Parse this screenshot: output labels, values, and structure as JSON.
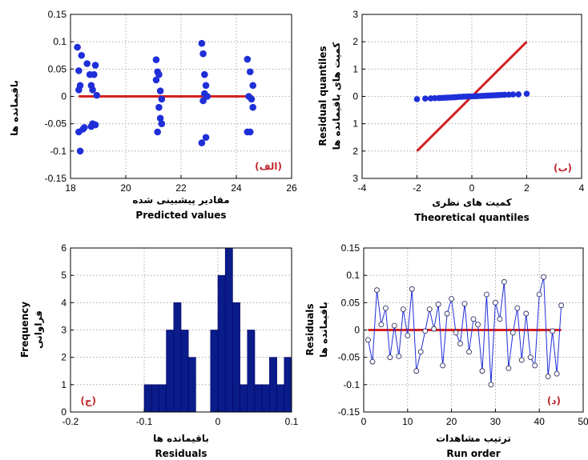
{
  "chart_data": [
    {
      "type": "scatter",
      "tag": "(الف)",
      "xlabel_fa": "مقادیر پیشبینی شده",
      "xlabel_en": "Predicted values",
      "ylabel_fa": "باقیمانده ها",
      "xlim": [
        18,
        26
      ],
      "ylim": [
        -0.15,
        0.15
      ],
      "xticks": [
        "18",
        "20",
        "22",
        "24",
        "26"
      ],
      "yticks": [
        "0.15",
        "0.1",
        "0.05",
        "0",
        "-0.05",
        "-0.1",
        "-0.15"
      ],
      "xtick_values": [
        18,
        20,
        22,
        24,
        26
      ],
      "ytick_values": [
        0.15,
        0.1,
        0.05,
        0,
        -0.05,
        -0.1,
        -0.15
      ],
      "grid": true,
      "point_color": "#1f2fd8",
      "line_color": "#d42020",
      "reference_line": {
        "x": [
          18.3,
          24.6
        ],
        "y": [
          0,
          0
        ]
      },
      "x": [
        18.25,
        18.3,
        18.35,
        18.3,
        18.4,
        18.3,
        18.45,
        18.35,
        18.5,
        18.6,
        18.7,
        18.75,
        18.8,
        18.75,
        18.8,
        18.9,
        18.85,
        18.95,
        18.9,
        21.1,
        21.15,
        21.1,
        21.2,
        21.25,
        21.3,
        21.2,
        21.15,
        21.3,
        21.25,
        22.75,
        22.8,
        22.85,
        22.9,
        22.8,
        22.85,
        22.95,
        22.75,
        22.9,
        24.4,
        24.5,
        24.6,
        24.45,
        24.55,
        24.6,
        24.4,
        24.5
      ],
      "y": [
        0.09,
        0.047,
        0.02,
        0.012,
        0.075,
        -0.065,
        -0.06,
        -0.1,
        -0.057,
        0.06,
        0.04,
        0.02,
        0.012,
        -0.055,
        -0.05,
        0.057,
        0.04,
        0.002,
        -0.052,
        0.067,
        0.045,
        0.03,
        0.04,
        0.01,
        -0.005,
        -0.02,
        -0.065,
        -0.05,
        -0.04,
        0.097,
        0.078,
        0.04,
        0.02,
        -0.008,
        0.005,
        0.0,
        -0.085,
        -0.075,
        0.068,
        0.045,
        0.02,
        0.0,
        -0.005,
        -0.02,
        -0.065,
        -0.065
      ]
    },
    {
      "type": "line",
      "tag": "(ب)",
      "xlabel_fa": "کمیت های نظری",
      "xlabel_en": "Theoretical quantiles",
      "ylabel_en": "Residual quantiles",
      "ylabel_fa": "کمیت های باقیمانده ها",
      "xlim": [
        -4,
        4
      ],
      "ylim": [
        -3,
        3
      ],
      "xticks": [
        "-4",
        "-2",
        "0",
        "2",
        "4"
      ],
      "yticks": [
        "3",
        "2",
        "1",
        "0",
        "1",
        "2",
        "3"
      ],
      "xtick_values": [
        -4,
        -2,
        0,
        2,
        4
      ],
      "ytick_values": [
        3,
        2,
        1,
        0,
        -1,
        -2,
        -3
      ],
      "grid": true,
      "reference_line": {
        "x": [
          -2,
          2
        ],
        "y": [
          -2,
          2
        ]
      },
      "points_x": [
        -2.0,
        -1.7,
        -1.5,
        -1.35,
        -1.2,
        -1.1,
        -1.0,
        -0.9,
        -0.8,
        -0.7,
        -0.6,
        -0.5,
        -0.4,
        -0.3,
        -0.2,
        -0.1,
        0.0,
        0.1,
        0.2,
        0.3,
        0.4,
        0.5,
        0.6,
        0.7,
        0.8,
        0.9,
        1.0,
        1.1,
        1.2,
        1.35,
        1.5,
        1.7,
        2.0
      ],
      "points_y": [
        -0.1,
        -0.08,
        -0.07,
        -0.065,
        -0.06,
        -0.055,
        -0.05,
        -0.045,
        -0.04,
        -0.035,
        -0.03,
        -0.02,
        -0.015,
        -0.01,
        -0.005,
        0.0,
        0.0,
        0.005,
        0.01,
        0.015,
        0.02,
        0.025,
        0.03,
        0.035,
        0.04,
        0.045,
        0.05,
        0.055,
        0.06,
        0.065,
        0.07,
        0.075,
        0.097
      ]
    },
    {
      "type": "bar",
      "tag": "(ج)",
      "xlabel_fa": "باقیمانده ها",
      "xlabel_en": "Residuals",
      "ylabel_en": "Frequency",
      "ylabel_fa": "فراوانی",
      "xlim": [
        -0.2,
        0.1
      ],
      "ylim": [
        0,
        6
      ],
      "xticks": [
        "-0.2",
        "-0.1",
        "0",
        "0.1"
      ],
      "yticks": [
        "6",
        "5",
        "4",
        "3",
        "2",
        "1",
        "0"
      ],
      "xtick_values": [
        -0.2,
        -0.1,
        0,
        0.1
      ],
      "ytick_values": [
        6,
        5,
        4,
        3,
        2,
        1,
        0
      ],
      "grid": true,
      "bar_color": "#0a1c8a",
      "bin_width": 0.01,
      "bin_starts": [
        -0.1,
        -0.09,
        -0.08,
        -0.07,
        -0.06,
        -0.05,
        -0.04,
        -0.03,
        -0.02,
        -0.01,
        0.0,
        0.01,
        0.02,
        0.03,
        0.04,
        0.05,
        0.06,
        0.07,
        0.08,
        0.09
      ],
      "values": [
        1,
        1,
        1,
        3,
        4,
        3,
        2,
        0,
        0,
        3,
        5,
        6,
        4,
        1,
        3,
        1,
        1,
        2,
        1,
        2
      ]
    },
    {
      "type": "line",
      "tag": "(د)",
      "xlabel_fa": "ترتیب مشاهدات",
      "xlabel_en": "Run order",
      "ylabel_en": "Residuals",
      "ylabel_fa": "باقیمانده ها",
      "xlim": [
        0,
        50
      ],
      "ylim": [
        -0.15,
        0.15
      ],
      "xticks": [
        "0",
        "10",
        "20",
        "30",
        "40",
        "50"
      ],
      "yticks": [
        "0.15",
        "0.1",
        "0.05",
        "0",
        "-0.05",
        "-0.1",
        "-0.15"
      ],
      "xtick_values": [
        0,
        10,
        20,
        30,
        40,
        50
      ],
      "ytick_values": [
        0.15,
        0.1,
        0.05,
        0,
        -0.05,
        -0.1,
        -0.15
      ],
      "grid": true,
      "reference_line": {
        "x": [
          1,
          45
        ],
        "y": [
          0,
          0
        ]
      },
      "x": [
        1,
        2,
        3,
        4,
        5,
        6,
        7,
        8,
        9,
        10,
        11,
        12,
        13,
        14,
        15,
        16,
        17,
        18,
        19,
        20,
        21,
        22,
        23,
        24,
        25,
        26,
        27,
        28,
        29,
        30,
        31,
        32,
        33,
        34,
        35,
        36,
        37,
        38,
        39,
        40,
        41,
        42,
        43,
        44,
        45
      ],
      "y": [
        -0.018,
        -0.058,
        0.073,
        0.01,
        0.04,
        -0.05,
        0.008,
        -0.048,
        0.038,
        -0.01,
        0.075,
        -0.075,
        -0.04,
        -0.002,
        0.038,
        0.002,
        0.047,
        -0.065,
        0.03,
        0.057,
        -0.005,
        -0.025,
        0.048,
        -0.04,
        0.02,
        0.01,
        -0.075,
        0.065,
        -0.1,
        0.05,
        0.02,
        0.088,
        -0.07,
        -0.005,
        0.04,
        -0.055,
        0.03,
        -0.05,
        -0.065,
        0.065,
        0.097,
        -0.085,
        -0.002,
        -0.08,
        0.045
      ]
    }
  ]
}
